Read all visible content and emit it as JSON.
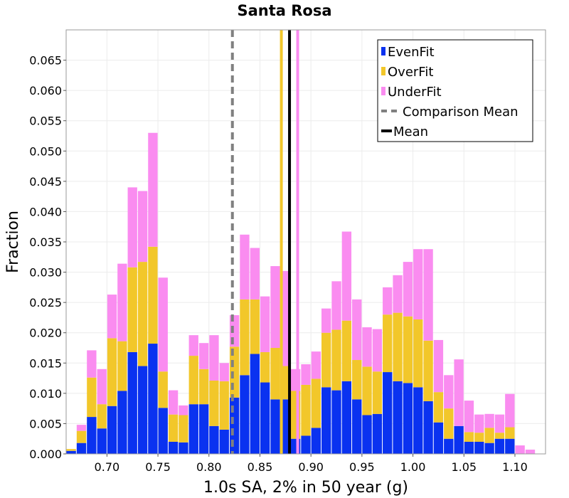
{
  "chart_data": {
    "type": "bar",
    "stacked": true,
    "title": "Santa Rosa",
    "xlabel": "1.0s SA, 2% in 50 year (g)",
    "ylabel": "Fraction",
    "xlim": [
      0.66,
      1.13
    ],
    "ylim": [
      0,
      0.07
    ],
    "bin_width": 0.01,
    "grid": true,
    "legend_position": "top-right",
    "x_ticks": [
      "0.70",
      "0.75",
      "0.80",
      "0.85",
      "0.90",
      "0.95",
      "1.00",
      "1.05",
      "1.10"
    ],
    "x_tick_values": [
      0.7,
      0.75,
      0.8,
      0.85,
      0.9,
      0.95,
      1.0,
      1.05,
      1.1
    ],
    "y_ticks": [
      "0.000",
      "0.005",
      "0.010",
      "0.015",
      "0.020",
      "0.025",
      "0.030",
      "0.035",
      "0.040",
      "0.045",
      "0.050",
      "0.055",
      "0.060",
      "0.065"
    ],
    "y_tick_values": [
      0,
      0.005,
      0.01,
      0.015,
      0.02,
      0.025,
      0.03,
      0.035,
      0.04,
      0.045,
      0.05,
      0.055,
      0.06,
      0.065
    ],
    "bin_starts": [
      0.66,
      0.67,
      0.68,
      0.69,
      0.7,
      0.71,
      0.72,
      0.73,
      0.74,
      0.75,
      0.76,
      0.77,
      0.78,
      0.79,
      0.8,
      0.81,
      0.82,
      0.83,
      0.84,
      0.85,
      0.86,
      0.87,
      0.88,
      0.89,
      0.9,
      0.91,
      0.92,
      0.93,
      0.94,
      0.95,
      0.96,
      0.97,
      0.98,
      0.99,
      1.0,
      1.01,
      1.02,
      1.03,
      1.04,
      1.05,
      1.06,
      1.07,
      1.08,
      1.09,
      1.1,
      1.11
    ],
    "series": [
      {
        "name": "EvenFit",
        "color": "#0a32f0",
        "values": [
          0.0005,
          0.0018,
          0.0061,
          0.0042,
          0.0079,
          0.0104,
          0.0168,
          0.0145,
          0.0182,
          0.0076,
          0.002,
          0.0019,
          0.0082,
          0.0082,
          0.0046,
          0.004,
          0.0093,
          0.013,
          0.0165,
          0.0118,
          0.009,
          0.009,
          0.0025,
          0.003,
          0.0043,
          0.011,
          0.0105,
          0.012,
          0.009,
          0.0064,
          0.0066,
          0.0135,
          0.012,
          0.0117,
          0.011,
          0.0087,
          0.0052,
          0.0025,
          0.0046,
          0.002,
          0.002,
          0.0018,
          0.0025,
          0.0025,
          0.0,
          0.0
        ]
      },
      {
        "name": "OverFit",
        "color": "#f2c72a",
        "values": [
          0.0003,
          0.002,
          0.0065,
          0.004,
          0.0112,
          0.0082,
          0.014,
          0.0172,
          0.016,
          0.006,
          0.0045,
          0.0045,
          0.008,
          0.0058,
          0.0075,
          0.008,
          0.0084,
          0.0125,
          0.009,
          0.005,
          0.0085,
          0.0055,
          0.0079,
          0.0084,
          0.0081,
          0.009,
          0.01,
          0.01,
          0.0065,
          0.008,
          0.007,
          0.0095,
          0.0113,
          0.011,
          0.0112,
          0.01,
          0.005,
          0.005,
          0.0,
          0.0016,
          0.0015,
          0.0025,
          0.001,
          0.0019,
          0.0,
          0.0
        ]
      },
      {
        "name": "UnderFit",
        "color": "#fa8cf0",
        "values": [
          0.0,
          0.001,
          0.0045,
          0.0058,
          0.0072,
          0.0128,
          0.0132,
          0.0117,
          0.0188,
          0.0155,
          0.004,
          0.0016,
          0.0034,
          0.0043,
          0.0075,
          0.003,
          0.0052,
          0.0107,
          0.0085,
          0.0092,
          0.0135,
          0.0157,
          0.0036,
          0.0034,
          0.0045,
          0.004,
          0.008,
          0.0147,
          0.01,
          0.0065,
          0.007,
          0.0045,
          0.0062,
          0.009,
          0.0116,
          0.0151,
          0.0086,
          0.0055,
          0.011,
          0.0052,
          0.003,
          0.0023,
          0.003,
          0.0055,
          0.0014,
          0.0007
        ]
      }
    ],
    "vertical_lines": [
      {
        "name": "Comparison Mean",
        "x": 0.823,
        "color": "#808080",
        "style": "dashed"
      },
      {
        "name": "Mean",
        "x": 0.879,
        "color": "#000000",
        "style": "solid"
      },
      {
        "name": "OverFit Mean",
        "x": 0.871,
        "color": "#f2c72a",
        "style": "solid"
      },
      {
        "name": "UnderFit Mean",
        "x": 0.887,
        "color": "#fa8cf0",
        "style": "solid"
      }
    ],
    "legend": [
      {
        "label": "EvenFit",
        "kind": "box",
        "color": "#0a32f0"
      },
      {
        "label": "OverFit",
        "kind": "box",
        "color": "#f2c72a"
      },
      {
        "label": "UnderFit",
        "kind": "box",
        "color": "#fa8cf0"
      },
      {
        "label": "Comparison Mean",
        "kind": "dashed",
        "color": "#808080"
      },
      {
        "label": "Mean",
        "kind": "solid",
        "color": "#000000"
      }
    ]
  }
}
